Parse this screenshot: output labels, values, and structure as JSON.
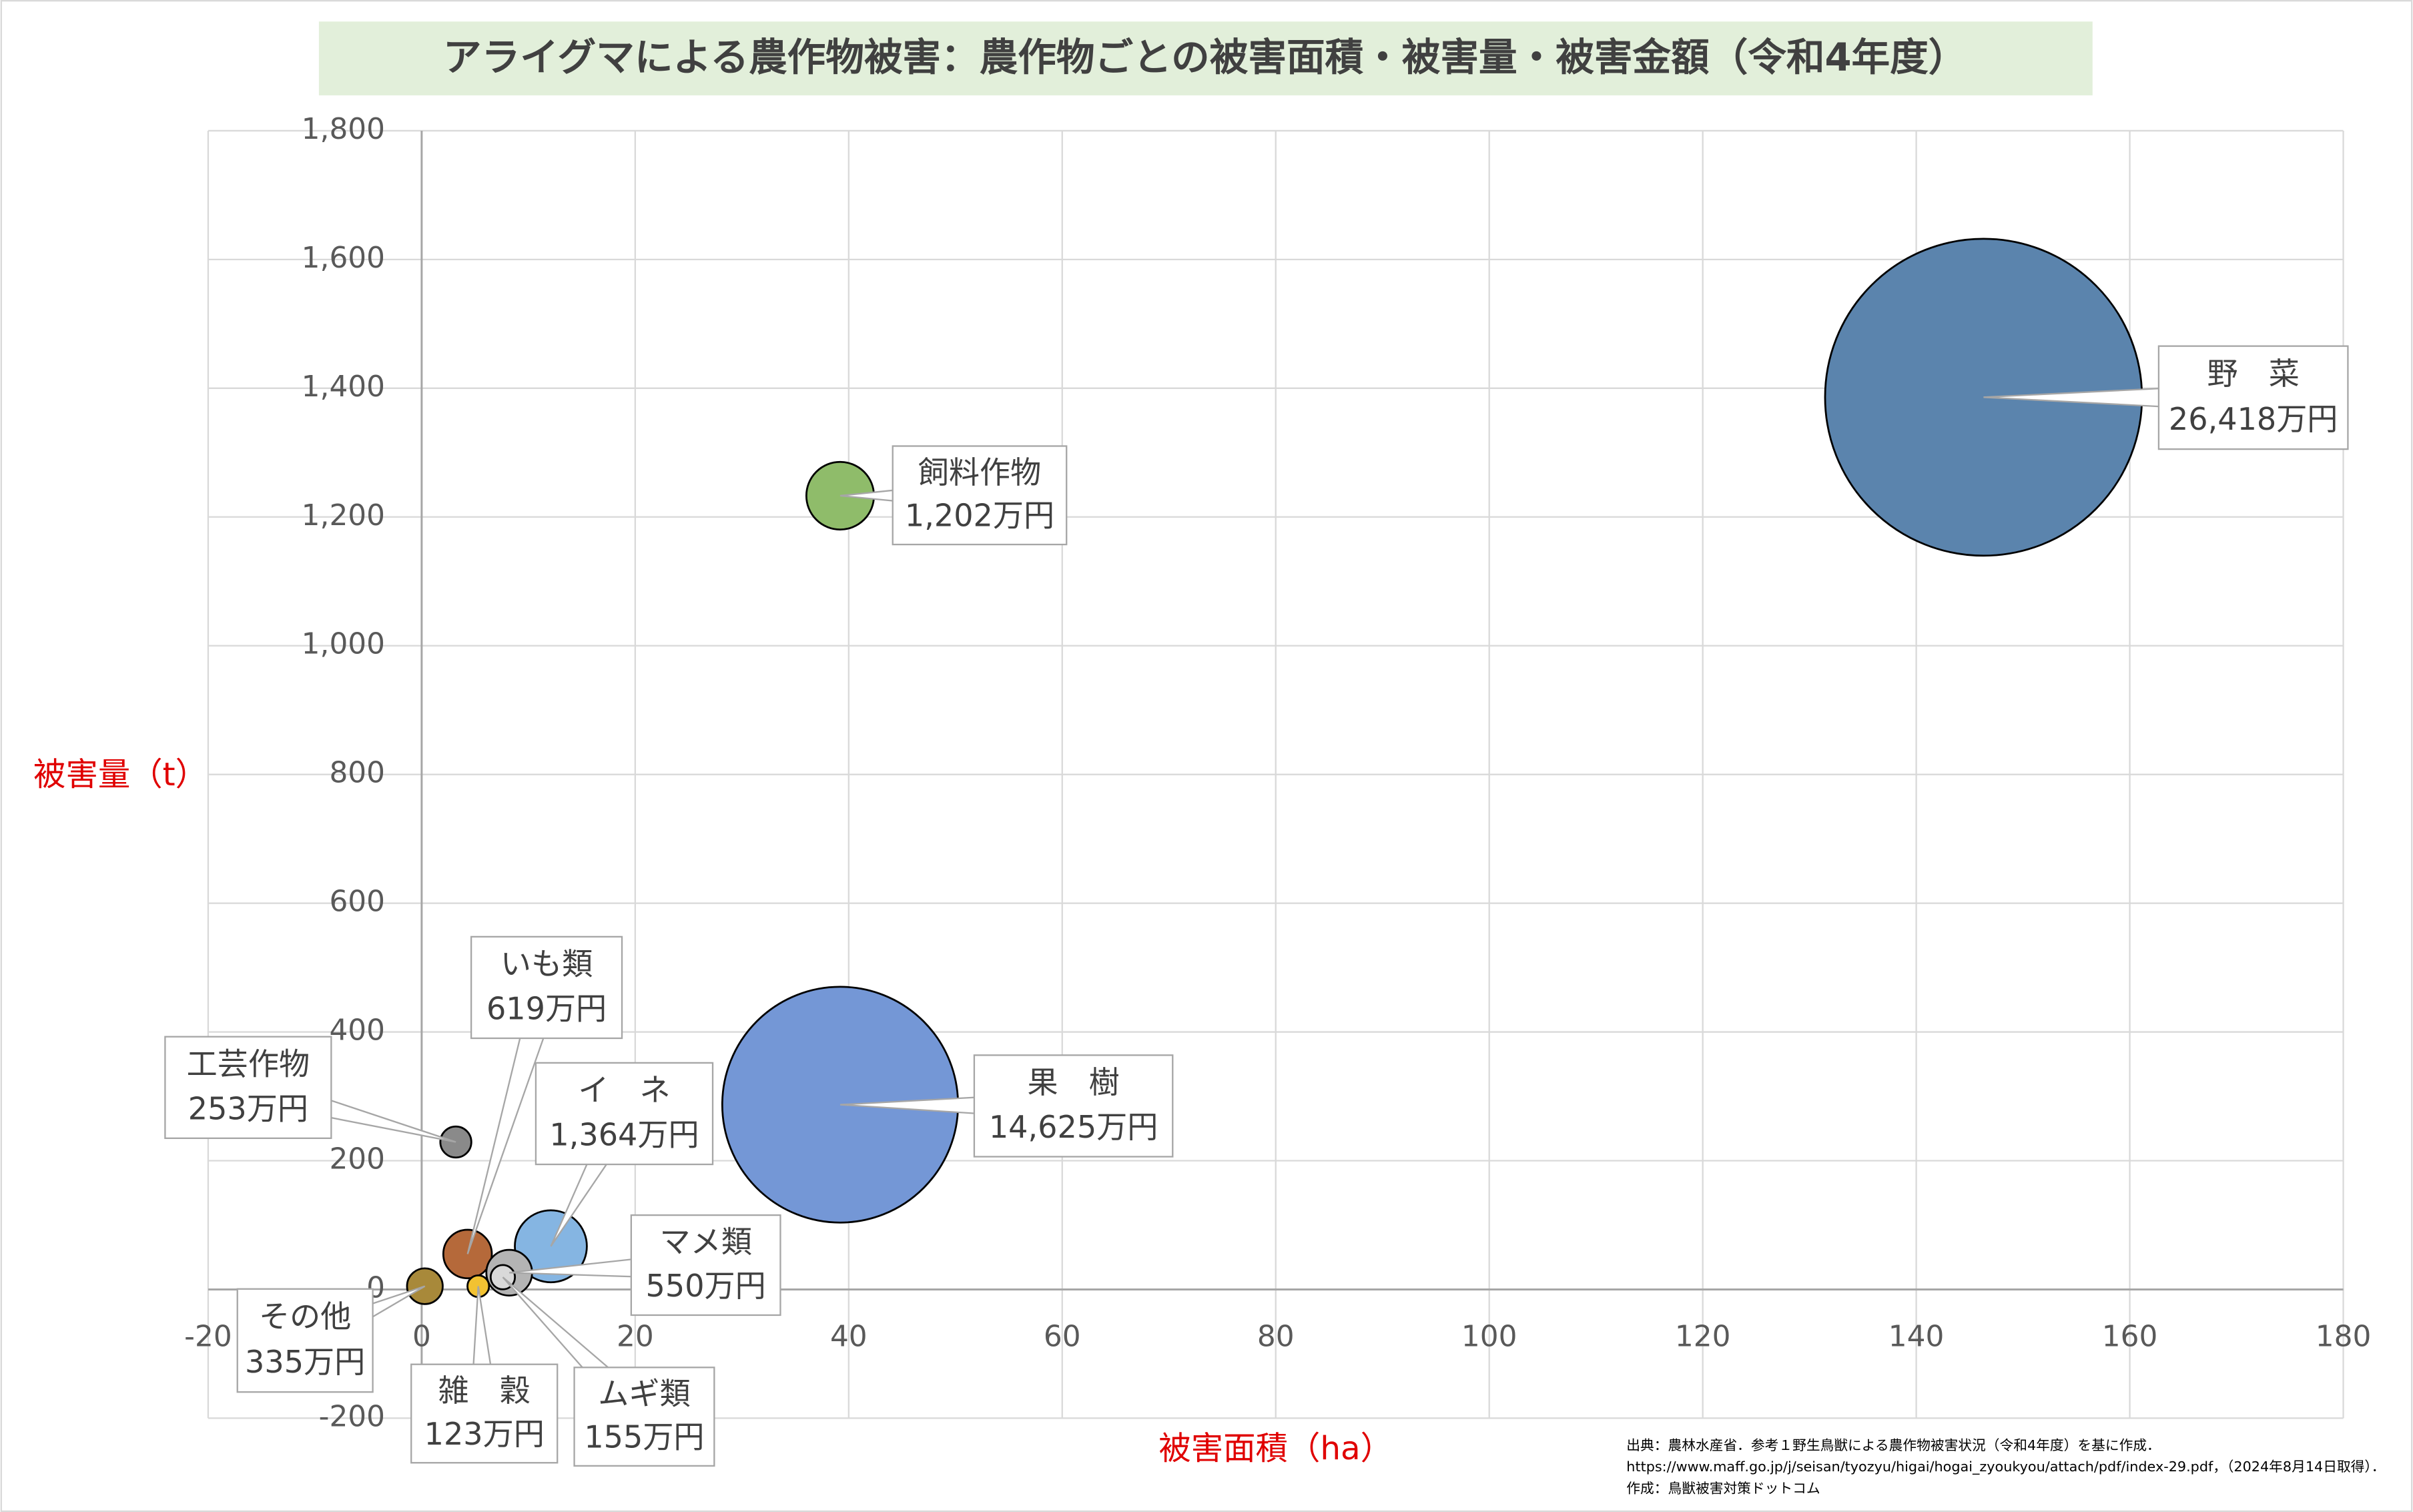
{
  "chart_data": {
    "type": "bubble",
    "title": "アライグマによる農作物被害：農作物ごとの被害面積・被害量・被害金額（令和4年度）",
    "x_label": "被害面積（ha）",
    "y_label": "被害量（t）",
    "xlim": [
      -20,
      180
    ],
    "xticks": [
      -20,
      0,
      20,
      40,
      60,
      80,
      100,
      120,
      140,
      160,
      180
    ],
    "ylim": [
      -200,
      1800
    ],
    "yticks": [
      -200,
      0,
      200,
      400,
      600,
      800,
      {
        "value": 1000,
        "label": "1,000"
      },
      {
        "value": 1200,
        "label": "1,200"
      },
      {
        "value": 1400,
        "label": "1,400"
      },
      {
        "value": 1600,
        "label": "1,600"
      },
      {
        "value": 1800,
        "label": "1,800"
      }
    ],
    "grid": true,
    "series": [
      {
        "name": "野　菜",
        "color": "#5b84ad",
        "x": [
          146.3
        ],
        "values": [
          1386
        ],
        "sizes": [
          26418
        ],
        "value_labels": [
          "26,418万円"
        ]
      },
      {
        "name": "果　樹",
        "color": "#7497d6",
        "x": [
          39.2
        ],
        "values": [
          287
        ],
        "sizes": [
          14625
        ],
        "value_labels": [
          "14,625万円"
        ]
      },
      {
        "name": "イ　ネ",
        "color": "#85b5e2",
        "x": [
          12.1
        ],
        "values": [
          67
        ],
        "sizes": [
          1364
        ],
        "value_labels": [
          "1,364万円"
        ]
      },
      {
        "name": "飼料作物",
        "color": "#8fbc6a",
        "x": [
          39.2
        ],
        "values": [
          1233
        ],
        "sizes": [
          1202
        ],
        "value_labels": [
          "1,202万円"
        ]
      },
      {
        "name": "いも類",
        "color": "#b5693a",
        "x": [
          4.3
        ],
        "values": [
          55
        ],
        "sizes": [
          619
        ],
        "value_labels": [
          "619万円"
        ]
      },
      {
        "name": "マメ類",
        "color": "#b4b4b4",
        "x": [
          8.2
        ],
        "values": [
          26
        ],
        "sizes": [
          550
        ],
        "value_labels": [
          "550万円"
        ]
      },
      {
        "name": "その他",
        "color": "#a8893a",
        "x": [
          0.3
        ],
        "values": [
          5
        ],
        "sizes": [
          335
        ],
        "value_labels": [
          "335万円"
        ]
      },
      {
        "name": "工芸作物",
        "color": "#8a8a8a",
        "x": [
          3.2
        ],
        "values": [
          229
        ],
        "sizes": [
          253
        ],
        "value_labels": [
          "253万円"
        ]
      },
      {
        "name": "ムギ類",
        "color": "#d9d9d9",
        "x": [
          7.6
        ],
        "values": [
          19
        ],
        "sizes": [
          155
        ],
        "value_labels": [
          "155万円"
        ]
      },
      {
        "name": "雑　穀",
        "color": "#f2c232",
        "x": [
          5.3
        ],
        "values": [
          5
        ],
        "sizes": [
          123
        ],
        "value_labels": [
          "123万円"
        ]
      }
    ],
    "source": [
      "出典：農林水産省．参考１野生鳥獣による農作物被害状況（令和4年度）を基に作成．",
      "https://www.maff.go.jp/j/seisan/tyozyu/higai/hogai_zyoukyou/attach/pdf/index-29.pdf，（2024年8月14日取得）．",
      "作成：鳥獣被害対策ドットコム"
    ]
  }
}
